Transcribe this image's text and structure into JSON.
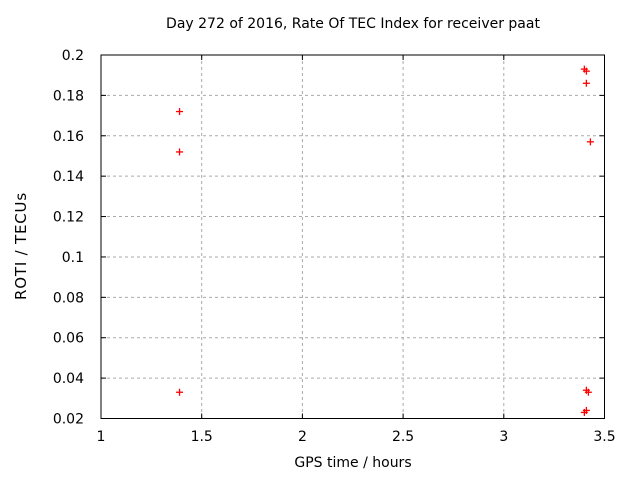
{
  "chart_data": {
    "type": "scatter",
    "title": "Day 272 of 2016, Rate Of TEC Index for receiver paat",
    "xlabel": "GPS time / hours",
    "ylabel": "ROTI / TECUs",
    "xlim": [
      1,
      3.5
    ],
    "ylim": [
      0.02,
      0.2
    ],
    "x_ticks": [
      "1",
      "1.5",
      "2",
      "2.5",
      "3",
      "3.5"
    ],
    "y_ticks": [
      "0.02",
      "0.04",
      "0.06",
      "0.08",
      "0.1",
      "0.12",
      "0.14",
      "0.16",
      "0.18",
      "0.2"
    ],
    "grid": true,
    "legend": "none",
    "marker": "plus",
    "marker_color": "#ff0000",
    "grid_color": "#aaaaaa",
    "axis_color": "#000000",
    "background_color": "#ffffff",
    "series": [
      {
        "name": "ROTI",
        "points": [
          [
            1.39,
            0.172
          ],
          [
            1.39,
            0.152
          ],
          [
            1.39,
            0.033
          ],
          [
            3.4,
            0.193
          ],
          [
            3.41,
            0.192
          ],
          [
            3.41,
            0.186
          ],
          [
            3.43,
            0.157
          ],
          [
            3.41,
            0.034
          ],
          [
            3.42,
            0.033
          ],
          [
            3.4,
            0.023
          ],
          [
            3.41,
            0.024
          ]
        ]
      }
    ]
  }
}
